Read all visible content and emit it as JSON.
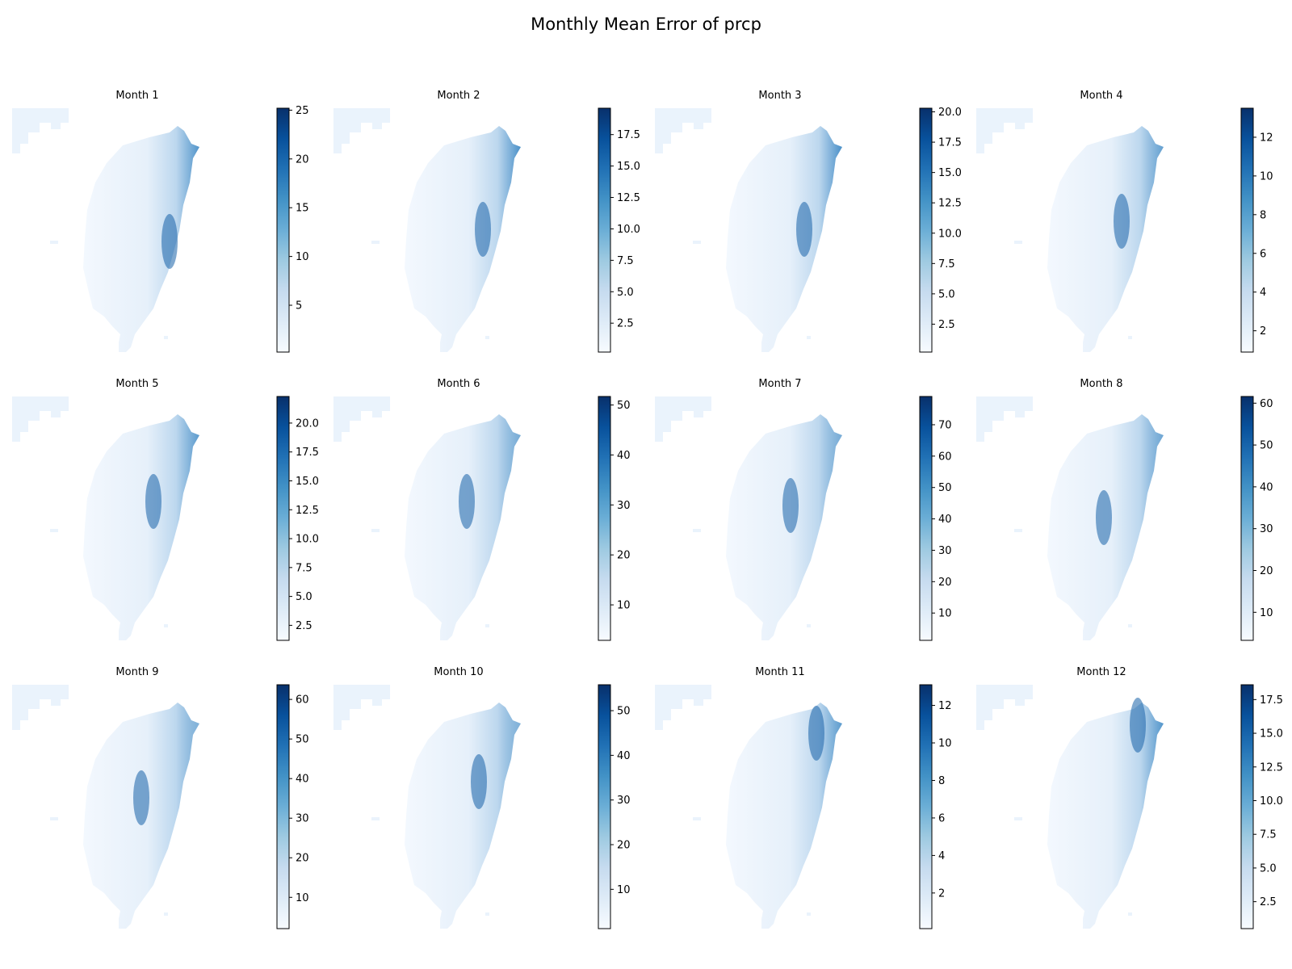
{
  "figure": {
    "title": "Monthly Mean Error of prcp"
  },
  "colors": {
    "cmap_low": "#f7fbff",
    "cmap_mid": "#6baed6",
    "cmap_high": "#08306b",
    "land_base": "#eaf3fc"
  },
  "chart_data": [
    {
      "type": "heatmap",
      "title": "Month 1",
      "colorbar": {
        "range": [
          0.2,
          25.2
        ],
        "ticks": [
          5,
          10,
          15,
          20,
          25
        ],
        "tick_labels": [
          "5",
          "10",
          "15",
          "20",
          "25"
        ]
      }
    },
    {
      "type": "heatmap",
      "title": "Month 2",
      "colorbar": {
        "range": [
          0.2,
          19.6
        ],
        "ticks": [
          2.5,
          5.0,
          7.5,
          10.0,
          12.5,
          15.0,
          17.5
        ],
        "tick_labels": [
          "2.5",
          "5.0",
          "7.5",
          "10.0",
          "12.5",
          "15.0",
          "17.5"
        ]
      }
    },
    {
      "type": "heatmap",
      "title": "Month 3",
      "colorbar": {
        "range": [
          0.2,
          20.3
        ],
        "ticks": [
          2.5,
          5.0,
          7.5,
          10.0,
          12.5,
          15.0,
          17.5,
          20.0
        ],
        "tick_labels": [
          "2.5",
          "5.0",
          "7.5",
          "10.0",
          "12.5",
          "15.0",
          "17.5",
          "20.0"
        ]
      }
    },
    {
      "type": "heatmap",
      "title": "Month 4",
      "colorbar": {
        "range": [
          0.9,
          13.5
        ],
        "ticks": [
          2,
          4,
          6,
          8,
          10,
          12
        ],
        "tick_labels": [
          "2",
          "4",
          "6",
          "8",
          "10",
          "12"
        ]
      }
    },
    {
      "type": "heatmap",
      "title": "Month 5",
      "colorbar": {
        "range": [
          1.2,
          22.3
        ],
        "ticks": [
          2.5,
          5.0,
          7.5,
          10.0,
          12.5,
          15.0,
          17.5,
          20.0
        ],
        "tick_labels": [
          "2.5",
          "5.0",
          "7.5",
          "10.0",
          "12.5",
          "15.0",
          "17.5",
          "20.0"
        ]
      }
    },
    {
      "type": "heatmap",
      "title": "Month 6",
      "colorbar": {
        "range": [
          2.9,
          51.7
        ],
        "ticks": [
          10,
          20,
          30,
          40,
          50
        ],
        "tick_labels": [
          "10",
          "20",
          "30",
          "40",
          "50"
        ]
      }
    },
    {
      "type": "heatmap",
      "title": "Month 7",
      "colorbar": {
        "range": [
          1.3,
          79.0
        ],
        "ticks": [
          10,
          20,
          30,
          40,
          50,
          60,
          70
        ],
        "tick_labels": [
          "10",
          "20",
          "30",
          "40",
          "50",
          "60",
          "70"
        ]
      }
    },
    {
      "type": "heatmap",
      "title": "Month 8",
      "colorbar": {
        "range": [
          3.3,
          61.6
        ],
        "ticks": [
          10,
          20,
          30,
          40,
          50,
          60
        ],
        "tick_labels": [
          "10",
          "20",
          "30",
          "40",
          "50",
          "60"
        ]
      }
    },
    {
      "type": "heatmap",
      "title": "Month 9",
      "colorbar": {
        "range": [
          2.1,
          63.7
        ],
        "ticks": [
          10,
          20,
          30,
          40,
          50,
          60
        ],
        "tick_labels": [
          "10",
          "20",
          "30",
          "40",
          "50",
          "60"
        ]
      }
    },
    {
      "type": "heatmap",
      "title": "Month 10",
      "colorbar": {
        "range": [
          1.2,
          55.8
        ],
        "ticks": [
          10,
          20,
          30,
          40,
          50
        ],
        "tick_labels": [
          "10",
          "20",
          "30",
          "40",
          "50"
        ]
      }
    },
    {
      "type": "heatmap",
      "title": "Month 11",
      "colorbar": {
        "range": [
          0.1,
          13.1
        ],
        "ticks": [
          2,
          4,
          6,
          8,
          10,
          12
        ],
        "tick_labels": [
          "2",
          "4",
          "6",
          "8",
          "10",
          "12"
        ]
      }
    },
    {
      "type": "heatmap",
      "title": "Month 12",
      "colorbar": {
        "range": [
          0.5,
          18.6
        ],
        "ticks": [
          2.5,
          5.0,
          7.5,
          10.0,
          12.5,
          15.0,
          17.5
        ],
        "tick_labels": [
          "2.5",
          "5.0",
          "7.5",
          "10.0",
          "12.5",
          "15.0",
          "17.5"
        ]
      }
    }
  ]
}
